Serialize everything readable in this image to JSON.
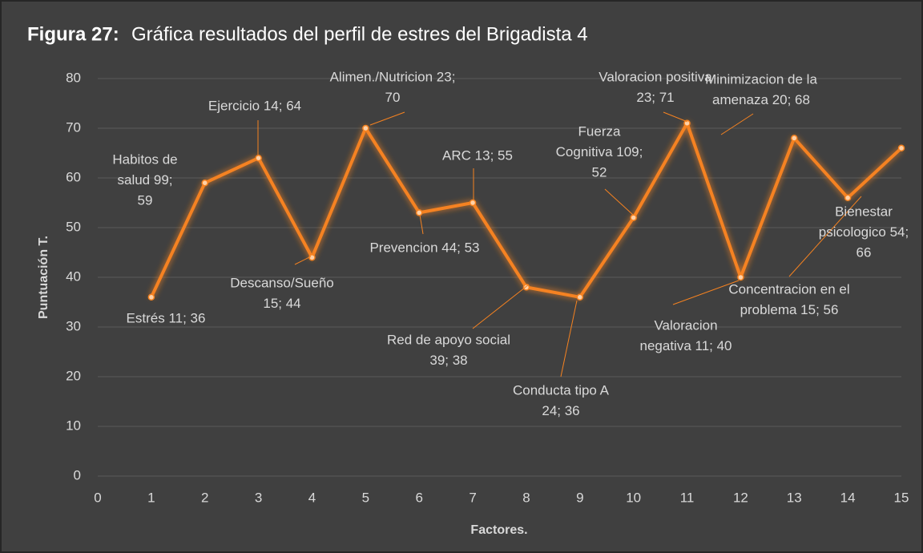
{
  "chart_data": {
    "type": "line",
    "figure_label": "Figura 27:",
    "title": "Gráfica resultados del perfil de estres del Brigadista 4",
    "x_label": "Factores.",
    "y_label": "Puntuación T.",
    "x": [
      1,
      2,
      3,
      4,
      5,
      6,
      7,
      8,
      9,
      10,
      11,
      12,
      13,
      14,
      15
    ],
    "series": [
      {
        "name": "Puntuación T.",
        "color": "#f58220",
        "values": [
          36,
          59,
          64,
          44,
          70,
          53,
          55,
          38,
          36,
          52,
          71,
          40,
          68,
          56,
          66
        ],
        "value_labels": [
          [
            "Estrés 11; 36"
          ],
          [
            "Habitos de",
            "salud 99;",
            "59"
          ],
          [
            "Ejercicio  14; 64"
          ],
          [
            "Descanso/Sueño",
            "15; 44"
          ],
          [
            "Alimen./Nutricion 23;",
            "70"
          ],
          [
            "Prevencion 44; 53"
          ],
          [
            "ARC 13; 55"
          ],
          [
            "Red de apoyo social",
            "39; 38"
          ],
          [
            "Conducta tipo A",
            "24; 36"
          ],
          [
            "Fuerza",
            "Cognitiva 109;",
            "52"
          ],
          [
            "Valoracion positiva",
            "23; 71"
          ],
          [
            "Valoracion",
            "negativa 11; 40"
          ],
          [
            "Minimizacion de la",
            "amenaza 20; 68"
          ],
          [
            "Concentracion en el",
            "problema 15; 56"
          ],
          [
            "Bienestar",
            "psicologico 54;",
            "66"
          ]
        ]
      }
    ],
    "xlim": [
      0,
      15
    ],
    "xticks": [
      0,
      1,
      2,
      3,
      4,
      5,
      6,
      7,
      8,
      9,
      10,
      11,
      12,
      13,
      14,
      15
    ],
    "ylim": [
      0,
      80
    ],
    "yticks": [
      0,
      10,
      20,
      30,
      40,
      50,
      60,
      70,
      80
    ],
    "grid": true
  }
}
